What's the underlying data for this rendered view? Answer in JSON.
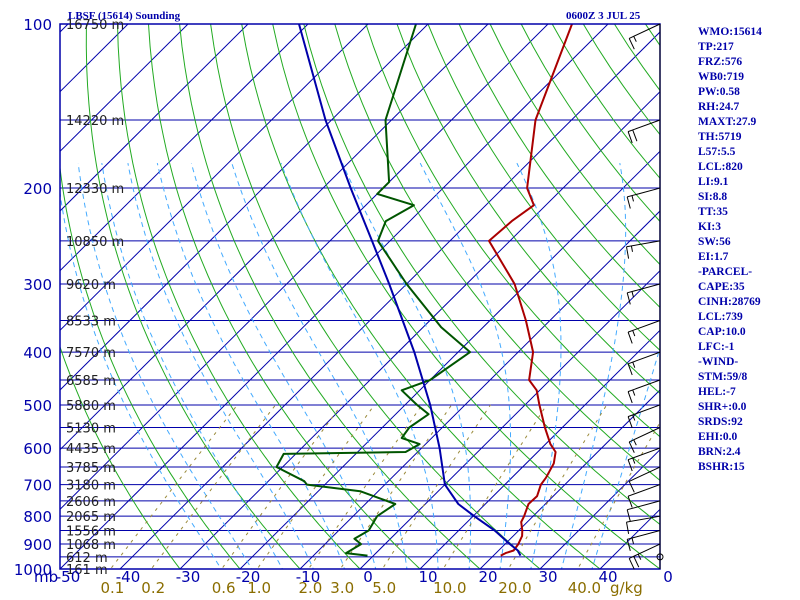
{
  "header": {
    "title": "LBSF (15614) Sounding",
    "time": "0600Z  3 JUL 25"
  },
  "indices": [
    "WMO:15614",
    "TP:217",
    "FRZ:576",
    "WB0:719",
    "PW:0.58",
    "RH:24.7",
    "MAXT:27.9",
    "TH:5719",
    "L57:5.5",
    "LCL:820",
    "LI:9.1",
    "SI:8.8",
    "TT:35",
    "KI:3",
    "SW:56",
    "EI:1.7",
    "-PARCEL-",
    "CAPE:35",
    "CINH:28769",
    "LCL:739",
    "CAP:10.0",
    "LFC:-1",
    "-WIND-",
    "STM:59/8",
    "HEL:-7",
    "SHR+:0.0",
    "SRDS:92",
    "EHI:0.0",
    "BRN:2.4",
    "BSHR:15"
  ],
  "axes": {
    "pressure_ticks": [
      "100",
      "200",
      "300",
      "400",
      "500",
      "600",
      "700",
      "800",
      "900",
      "1000"
    ],
    "pressure_tick_values": [
      100,
      200,
      300,
      400,
      500,
      600,
      700,
      800,
      900,
      1000
    ],
    "temp_ticks": [
      "-50",
      "-40",
      "-30",
      "-20",
      "-10",
      "0",
      "10",
      "20",
      "30",
      "40",
      "0"
    ],
    "temp_unit_label": "mb",
    "mixing_ratio_ticks": [
      "0.1",
      "0.2",
      "0.6",
      "1.0",
      "2.0",
      "3.0",
      "5.0",
      "10.0",
      "20.0",
      "40.0"
    ],
    "mixing_ratio_values": [
      0.1,
      0.2,
      0.6,
      1.0,
      2.0,
      3.0,
      5.0,
      10.0,
      20.0,
      40.0
    ],
    "mixing_unit": "g/kg"
  },
  "height_labels": [
    {
      "p": 100,
      "label": "16750 m"
    },
    {
      "p": 150,
      "label": "14220 m"
    },
    {
      "p": 200,
      "label": "12330 m"
    },
    {
      "p": 250,
      "label": "10850 m"
    },
    {
      "p": 300,
      "label": "9620 m"
    },
    {
      "p": 350,
      "label": "8533 m"
    },
    {
      "p": 400,
      "label": "7570 m"
    },
    {
      "p": 450,
      "label": "6585 m"
    },
    {
      "p": 500,
      "label": "5880 m"
    },
    {
      "p": 550,
      "label": "5130 m"
    },
    {
      "p": 600,
      "label": "4435 m"
    },
    {
      "p": 650,
      "label": "3785 m"
    },
    {
      "p": 700,
      "label": "3180 m"
    },
    {
      "p": 750,
      "label": "2606 m"
    },
    {
      "p": 800,
      "label": "2065 m"
    },
    {
      "p": 850,
      "label": "1556 m"
    },
    {
      "p": 900,
      "label": "1068 m"
    },
    {
      "p": 950,
      "label": "612 m"
    },
    {
      "p": 1000,
      "label": "161 m"
    }
  ],
  "colors": {
    "frame": "#0000aa",
    "isotherm": "#0000aa",
    "dry_adiabat": "#22aa22",
    "moist_adiabat": "#44aaff",
    "mixing_ratio": "#9a8a3a",
    "temperature": "#aa0000",
    "dewpoint": "#005500",
    "parcel": "#0000aa",
    "wind": "#000000"
  },
  "chart_data": {
    "type": "skew-t",
    "title": "LBSF (15614) Sounding",
    "subtitle": "0600Z  3 JUL 25",
    "xlabel": "",
    "ylabel": "",
    "pressure_range_hpa": [
      1000,
      100
    ],
    "pressure_scale": "log",
    "temperature_range_c": [
      -50,
      50
    ],
    "series": [
      {
        "kind": "temperature",
        "points": [
          [
            945,
            21.2
          ],
          [
            935,
            21.6
          ],
          [
            925,
            22.5
          ],
          [
            900,
            22.2
          ],
          [
            870,
            21.5
          ],
          [
            850,
            20.6
          ],
          [
            820,
            19.0
          ],
          [
            800,
            18.5
          ],
          [
            760,
            17.2
          ],
          [
            735,
            17.3
          ],
          [
            700,
            16.0
          ],
          [
            680,
            15.7
          ],
          [
            640,
            14.6
          ],
          [
            610,
            13.0
          ],
          [
            590,
            10.8
          ],
          [
            550,
            7.1
          ],
          [
            500,
            2.4
          ],
          [
            470,
            -0.5
          ],
          [
            450,
            -3.5
          ],
          [
            400,
            -7.5
          ],
          [
            350,
            -14.0
          ],
          [
            300,
            -22.0
          ],
          [
            250,
            -33.5
          ],
          [
            230,
            -33.0
          ],
          [
            215,
            -32.0
          ],
          [
            200,
            -36.0
          ],
          [
            150,
            -46.0
          ],
          [
            100,
            -56.0
          ]
        ]
      },
      {
        "kind": "dewpoint",
        "points": [
          [
            945,
            -1.0
          ],
          [
            935,
            -5.0
          ],
          [
            900,
            -4.0
          ],
          [
            880,
            -6.0
          ],
          [
            850,
            -5.0
          ],
          [
            800,
            -6.0
          ],
          [
            760,
            -5.0
          ],
          [
            720,
            -13.0
          ],
          [
            700,
            -23.0
          ],
          [
            690,
            -24.0
          ],
          [
            650,
            -31.0
          ],
          [
            615,
            -32.0
          ],
          [
            610,
            -12.0
          ],
          [
            590,
            -11.0
          ],
          [
            575,
            -15.0
          ],
          [
            550,
            -15.5
          ],
          [
            520,
            -14.5
          ],
          [
            500,
            -18.0
          ],
          [
            470,
            -23.0
          ],
          [
            450,
            -20.0
          ],
          [
            400,
            -18.0
          ],
          [
            360,
            -27.0
          ],
          [
            300,
            -40.0
          ],
          [
            250,
            -52.0
          ],
          [
            230,
            -54.0
          ],
          [
            215,
            -52.0
          ],
          [
            205,
            -60.0
          ],
          [
            195,
            -60.0
          ],
          [
            150,
            -71.0
          ],
          [
            100,
            -82.0
          ]
        ]
      },
      {
        "kind": "parcel",
        "points": [
          [
            945,
            24.5
          ],
          [
            925,
            23.2
          ],
          [
            900,
            20.8
          ],
          [
            850,
            16.0
          ],
          [
            800,
            10.2
          ],
          [
            760,
            5.5
          ],
          [
            700,
            0.0
          ],
          [
            600,
            -7.0
          ],
          [
            500,
            -15.8
          ],
          [
            400,
            -27.3
          ],
          [
            300,
            -42.9
          ],
          [
            250,
            -53.0
          ],
          [
            200,
            -65.4
          ],
          [
            150,
            -81.0
          ],
          [
            100,
            -101.5
          ]
        ]
      }
    ],
    "wind_barbs": [
      {
        "p": 950,
        "dir": 250,
        "spd": 0
      },
      {
        "p": 900,
        "dir": 245,
        "spd": 25
      },
      {
        "p": 850,
        "dir": 255,
        "spd": 15
      },
      {
        "p": 800,
        "dir": 260,
        "spd": 10
      },
      {
        "p": 750,
        "dir": 255,
        "spd": 10
      },
      {
        "p": 700,
        "dir": 250,
        "spd": 10
      },
      {
        "p": 650,
        "dir": 245,
        "spd": 10
      },
      {
        "p": 600,
        "dir": 250,
        "spd": 15
      },
      {
        "p": 550,
        "dir": 245,
        "spd": 15
      },
      {
        "p": 500,
        "dir": 250,
        "spd": 15
      },
      {
        "p": 450,
        "dir": 250,
        "spd": 15
      },
      {
        "p": 400,
        "dir": 250,
        "spd": 15
      },
      {
        "p": 350,
        "dir": 250,
        "spd": 15
      },
      {
        "p": 300,
        "dir": 255,
        "spd": 15
      },
      {
        "p": 250,
        "dir": 260,
        "spd": 15
      },
      {
        "p": 200,
        "dir": 255,
        "spd": 15
      },
      {
        "p": 150,
        "dir": 250,
        "spd": 20
      },
      {
        "p": 100,
        "dir": 245,
        "spd": 15
      }
    ],
    "grid": true
  }
}
